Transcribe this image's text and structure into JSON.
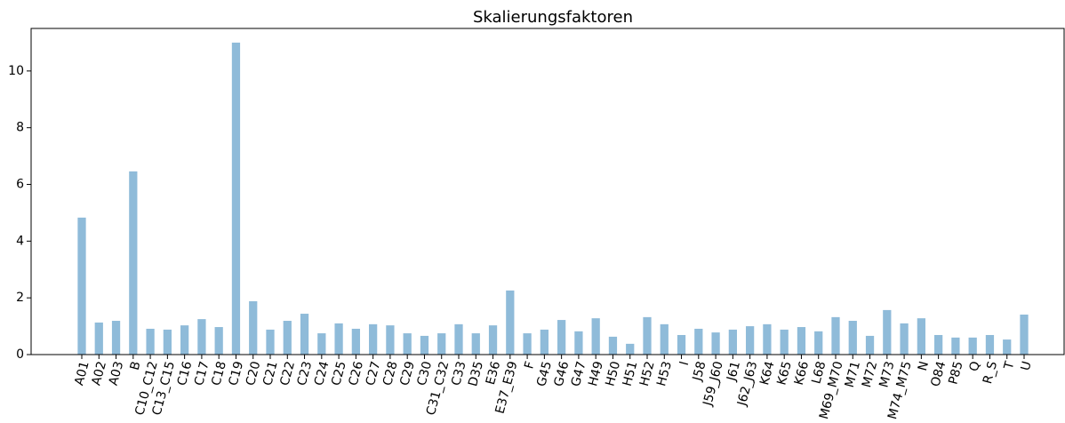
{
  "chart_data": {
    "type": "bar",
    "title": "Skalierungsfaktoren",
    "categories": [
      "A01",
      "A02",
      "A03",
      "B",
      "C10_C12",
      "C13_C15",
      "C16",
      "C17",
      "C18",
      "C19",
      "C20",
      "C21",
      "C22",
      "C23",
      "C24",
      "C25",
      "C26",
      "C27",
      "C28",
      "C29",
      "C30",
      "C31_C32",
      "C33",
      "D35",
      "E36",
      "E37_E39",
      "F",
      "G45",
      "G46",
      "G47",
      "H49",
      "H50",
      "H51",
      "H52",
      "H53",
      "I",
      "J58",
      "J59_J60",
      "J61",
      "J62_J63",
      "K64",
      "K65",
      "K66",
      "L68",
      "M69_M70",
      "M71",
      "M72",
      "M73",
      "M74_M75",
      "N",
      "O84",
      "P85",
      "Q",
      "R_S",
      "T",
      "U"
    ],
    "values": [
      4.83,
      1.13,
      1.19,
      6.46,
      0.91,
      0.88,
      1.03,
      1.25,
      0.97,
      11.0,
      1.88,
      0.88,
      1.19,
      1.44,
      0.75,
      1.1,
      0.91,
      1.07,
      1.03,
      0.75,
      0.66,
      0.75,
      1.07,
      0.75,
      1.03,
      2.26,
      0.75,
      0.88,
      1.22,
      0.82,
      1.28,
      0.63,
      0.38,
      1.32,
      1.07,
      0.69,
      0.91,
      0.78,
      0.88,
      1.0,
      1.07,
      0.88,
      0.97,
      0.82,
      1.32,
      1.19,
      0.66,
      1.57,
      1.1,
      1.28,
      0.69,
      0.6,
      0.6,
      0.69,
      0.53,
      1.41
    ],
    "color": "#8fbbd9",
    "ylim": [
      0,
      11.5
    ],
    "yticks": [
      0,
      2,
      4,
      6,
      8,
      10
    ],
    "grid": false
  }
}
